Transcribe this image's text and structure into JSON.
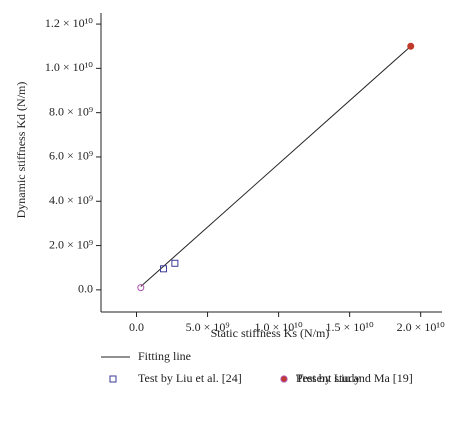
{
  "chart_data": {
    "type": "scatter",
    "xlabel": "Static stiffness Ks (N/m)",
    "ylabel": "Dynamic stiffness Kd (N/m)",
    "xlim": [
      -2500000000,
      21500000000
    ],
    "ylim": [
      -1000000000,
      12500000000
    ],
    "xticks": [
      {
        "value": 0,
        "label": "0.0"
      },
      {
        "value": 5000000000,
        "label": "5.0 × 10⁹"
      },
      {
        "value": 10000000000,
        "label": "1.0 × 10¹⁰"
      },
      {
        "value": 15000000000,
        "label": "1.5 × 10¹⁰"
      },
      {
        "value": 20000000000,
        "label": "2.0 × 10¹⁰"
      }
    ],
    "yticks": [
      {
        "value": 0,
        "label": "0.0"
      },
      {
        "value": 2000000000,
        "label": "2.0 × 10⁹"
      },
      {
        "value": 4000000000,
        "label": "4.0 × 10⁹"
      },
      {
        "value": 6000000000,
        "label": "6.0 × 10⁹"
      },
      {
        "value": 8000000000,
        "label": "8.0 × 10⁹"
      },
      {
        "value": 10000000000,
        "label": "1.0 × 10¹⁰"
      },
      {
        "value": 12000000000,
        "label": "1.2 × 10¹⁰"
      }
    ],
    "series": [
      {
        "name": "Fitting line",
        "color": "#222222",
        "marker": "line",
        "x": [
          300000000,
          19300000000
        ],
        "values": [
          150000000,
          11000000000
        ]
      },
      {
        "name": "Present study",
        "color": "#c0392b",
        "marker": "filled-circle",
        "x": [
          19300000000
        ],
        "values": [
          11000000000
        ]
      },
      {
        "name": "Test by Liu et al. [24]",
        "color": "#3a3a9a",
        "marker": "open-square",
        "x": [
          1900000000,
          2700000000
        ],
        "values": [
          950000000,
          1200000000
        ]
      },
      {
        "name": "Test by Liu and Ma [19]",
        "color": "#b050b0",
        "marker": "open-circle",
        "x": [
          300000000
        ],
        "values": [
          100000000
        ]
      }
    ]
  }
}
